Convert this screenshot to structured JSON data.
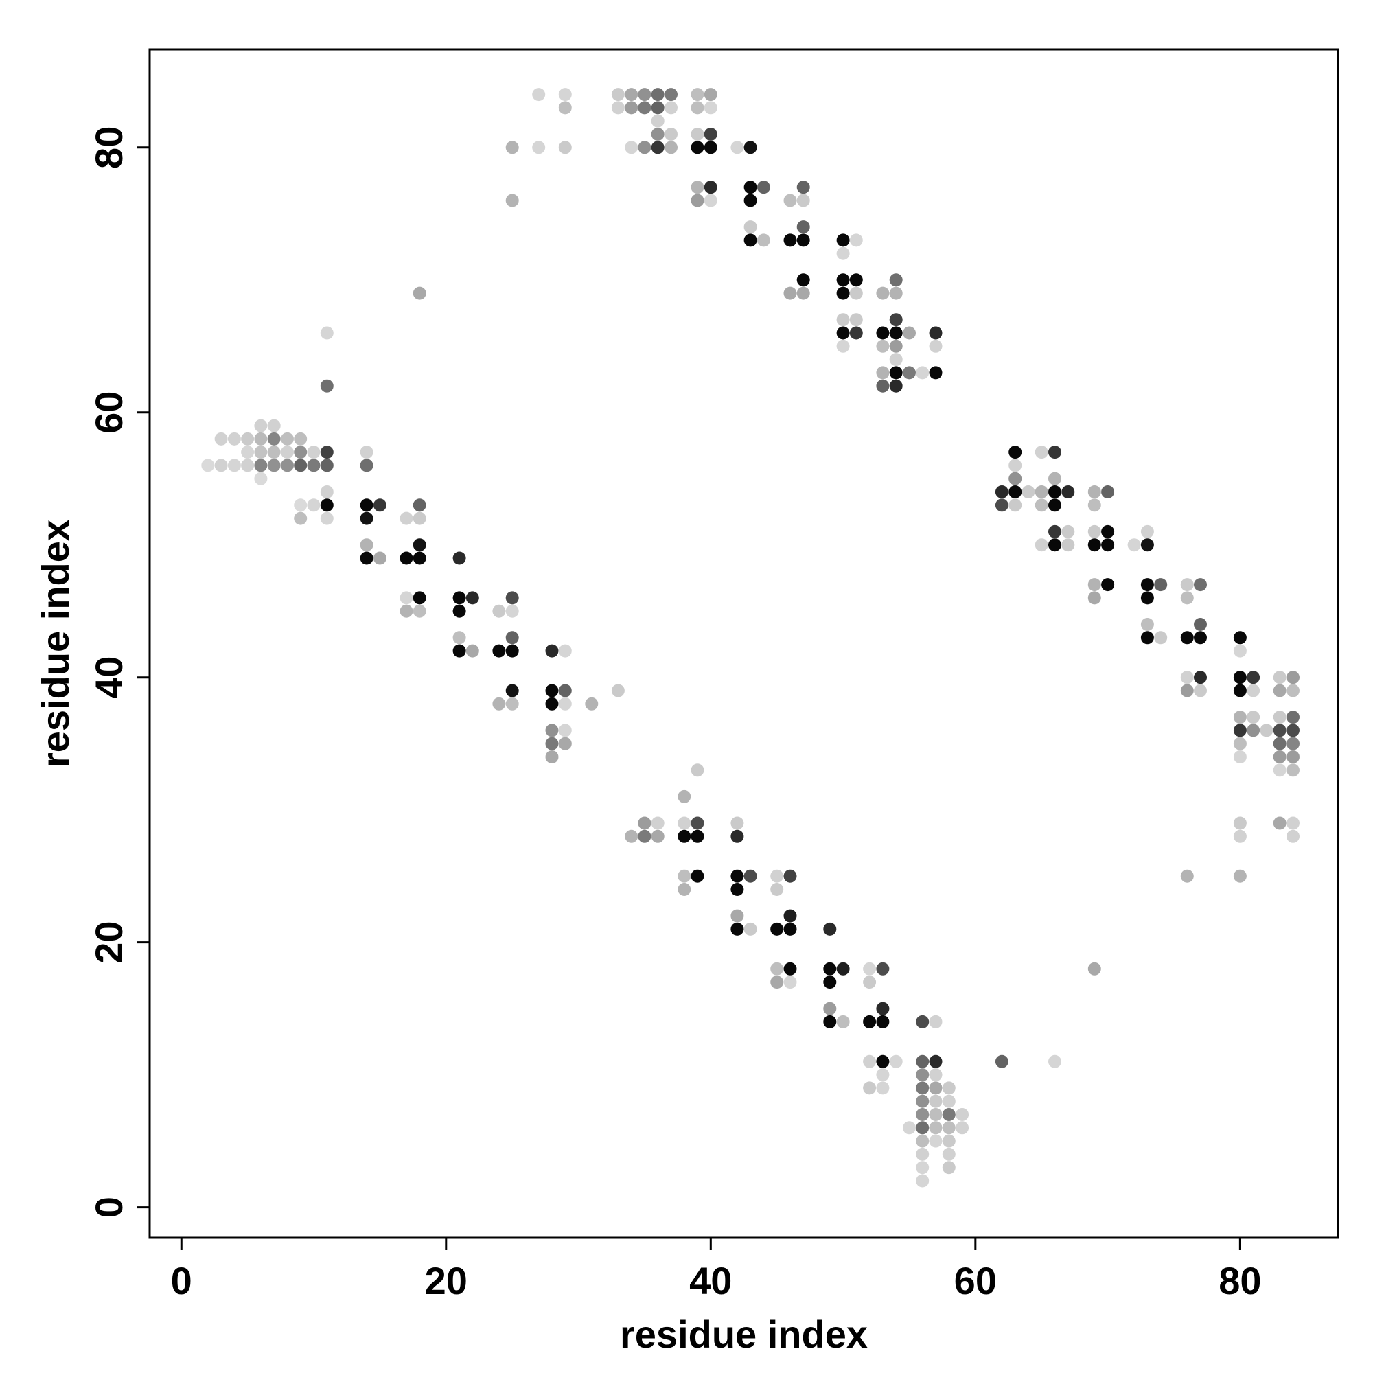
{
  "chart_data": {
    "type": "scatter",
    "title": "",
    "xlabel": "residue index",
    "ylabel": "residue index",
    "xlim": [
      -2.4,
      87.4
    ],
    "ylim": [
      -2.3,
      87.4
    ],
    "x_ticks": [
      0,
      20,
      40,
      60,
      80
    ],
    "y_ticks": [
      0,
      20,
      40,
      60,
      80
    ],
    "grid": false,
    "legend": "none",
    "marker_color": "#000000",
    "note_value": "each point value in [0,1] is shown as gray-level intensity (1 = black)",
    "points": [
      [
        2,
        56,
        0.08
      ],
      [
        3,
        56,
        0.12
      ],
      [
        3,
        58,
        0.12
      ],
      [
        4,
        56,
        0.1
      ],
      [
        4,
        58,
        0.12
      ],
      [
        5,
        56,
        0.12
      ],
      [
        5,
        58,
        0.15
      ],
      [
        5,
        57,
        0.1
      ],
      [
        6,
        59,
        0.12
      ],
      [
        6,
        58,
        0.22
      ],
      [
        6,
        57,
        0.18
      ],
      [
        6,
        56,
        0.45
      ],
      [
        6,
        55,
        0.08
      ],
      [
        7,
        59,
        0.12
      ],
      [
        7,
        58,
        0.45
      ],
      [
        7,
        57,
        0.2
      ],
      [
        7,
        56,
        0.4
      ],
      [
        8,
        58,
        0.2
      ],
      [
        8,
        57,
        0.12
      ],
      [
        8,
        56,
        0.4
      ],
      [
        9,
        58,
        0.2
      ],
      [
        9,
        57,
        0.4
      ],
      [
        9,
        56,
        0.6
      ],
      [
        9,
        53,
        0.08
      ],
      [
        9,
        52,
        0.2
      ],
      [
        10,
        57,
        0.12
      ],
      [
        10,
        56,
        0.5
      ],
      [
        10,
        53,
        0.1
      ],
      [
        11,
        66,
        0.1
      ],
      [
        11,
        62,
        0.55
      ],
      [
        11,
        57,
        0.75
      ],
      [
        11,
        56,
        0.6
      ],
      [
        11,
        54,
        0.12
      ],
      [
        11,
        53,
        1.0
      ],
      [
        11,
        52,
        0.1
      ],
      [
        14,
        57,
        0.12
      ],
      [
        14,
        56,
        0.55
      ],
      [
        14,
        53,
        1.0
      ],
      [
        14,
        52,
        0.95
      ],
      [
        14,
        50,
        0.25
      ],
      [
        14,
        49,
        1.0
      ],
      [
        15,
        53,
        0.8
      ],
      [
        15,
        49,
        0.3
      ],
      [
        17,
        52,
        0.12
      ],
      [
        17,
        49,
        1.0
      ],
      [
        17,
        46,
        0.1
      ],
      [
        17,
        45,
        0.25
      ],
      [
        18,
        69,
        0.3
      ],
      [
        18,
        53,
        0.6
      ],
      [
        18,
        52,
        0.15
      ],
      [
        18,
        50,
        0.95
      ],
      [
        18,
        49,
        1.0
      ],
      [
        18,
        46,
        1.0
      ],
      [
        18,
        45,
        0.2
      ],
      [
        21,
        49,
        0.85
      ],
      [
        21,
        46,
        1.0
      ],
      [
        21,
        45,
        1.0
      ],
      [
        21,
        43,
        0.2
      ],
      [
        21,
        42,
        1.0
      ],
      [
        22,
        46,
        0.85
      ],
      [
        22,
        42,
        0.3
      ],
      [
        24,
        45,
        0.15
      ],
      [
        24,
        42,
        1.0
      ],
      [
        24,
        38,
        0.25
      ],
      [
        25,
        80,
        0.25
      ],
      [
        25,
        76,
        0.25
      ],
      [
        25,
        46,
        0.7
      ],
      [
        25,
        45,
        0.1
      ],
      [
        25,
        43,
        0.6
      ],
      [
        25,
        42,
        1.0
      ],
      [
        25,
        39,
        0.95
      ],
      [
        25,
        38,
        0.2
      ],
      [
        27,
        84,
        0.1
      ],
      [
        27,
        80,
        0.1
      ],
      [
        28,
        42,
        0.85
      ],
      [
        28,
        39,
        1.0
      ],
      [
        28,
        38,
        1.0
      ],
      [
        28,
        36,
        0.4
      ],
      [
        28,
        35,
        0.5
      ],
      [
        28,
        34,
        0.3
      ],
      [
        29,
        84,
        0.1
      ],
      [
        29,
        83,
        0.2
      ],
      [
        29,
        80,
        0.15
      ],
      [
        29,
        42,
        0.1
      ],
      [
        29,
        39,
        0.6
      ],
      [
        29,
        38,
        0.1
      ],
      [
        29,
        36,
        0.1
      ],
      [
        29,
        35,
        0.3
      ],
      [
        31,
        38,
        0.25
      ],
      [
        33,
        39,
        0.15
      ],
      [
        33,
        84,
        0.15
      ],
      [
        33,
        83,
        0.12
      ],
      [
        34,
        84,
        0.3
      ],
      [
        34,
        83,
        0.35
      ],
      [
        34,
        80,
        0.1
      ],
      [
        34,
        28,
        0.25
      ],
      [
        35,
        84,
        0.4
      ],
      [
        35,
        83,
        0.5
      ],
      [
        35,
        80,
        0.4
      ],
      [
        35,
        29,
        0.35
      ],
      [
        35,
        28,
        0.5
      ],
      [
        36,
        84,
        0.55
      ],
      [
        36,
        83,
        0.6
      ],
      [
        36,
        82,
        0.12
      ],
      [
        36,
        81,
        0.4
      ],
      [
        36,
        80,
        0.8
      ],
      [
        36,
        29,
        0.12
      ],
      [
        36,
        28,
        0.3
      ],
      [
        37,
        84,
        0.5
      ],
      [
        37,
        83,
        0.12
      ],
      [
        37,
        81,
        0.15
      ],
      [
        37,
        80,
        0.25
      ],
      [
        38,
        31,
        0.25
      ],
      [
        38,
        29,
        0.12
      ],
      [
        38,
        28,
        1.0
      ],
      [
        38,
        25,
        0.2
      ],
      [
        38,
        24,
        0.25
      ],
      [
        39,
        84,
        0.2
      ],
      [
        39,
        83,
        0.2
      ],
      [
        39,
        81,
        0.15
      ],
      [
        39,
        80,
        1.0
      ],
      [
        39,
        77,
        0.25
      ],
      [
        39,
        76,
        0.35
      ],
      [
        39,
        33,
        0.15
      ],
      [
        39,
        29,
        0.7
      ],
      [
        39,
        28,
        1.0
      ],
      [
        39,
        25,
        1.0
      ],
      [
        40,
        84,
        0.3
      ],
      [
        40,
        83,
        0.1
      ],
      [
        40,
        81,
        0.75
      ],
      [
        40,
        80,
        1.0
      ],
      [
        40,
        77,
        0.85
      ],
      [
        40,
        76,
        0.1
      ],
      [
        42,
        80,
        0.1
      ],
      [
        42,
        29,
        0.15
      ],
      [
        42,
        28,
        0.85
      ],
      [
        42,
        25,
        1.0
      ],
      [
        42,
        24,
        1.0
      ],
      [
        42,
        22,
        0.3
      ],
      [
        42,
        21,
        1.0
      ],
      [
        43,
        80,
        0.95
      ],
      [
        43,
        77,
        1.0
      ],
      [
        43,
        76,
        1.0
      ],
      [
        43,
        74,
        0.15
      ],
      [
        43,
        73,
        1.0
      ],
      [
        43,
        25,
        0.7
      ],
      [
        43,
        21,
        0.15
      ],
      [
        44,
        77,
        0.6
      ],
      [
        44,
        73,
        0.2
      ],
      [
        45,
        25,
        0.12
      ],
      [
        45,
        24,
        0.15
      ],
      [
        45,
        21,
        1.0
      ],
      [
        45,
        18,
        0.2
      ],
      [
        45,
        17,
        0.3
      ],
      [
        46,
        76,
        0.2
      ],
      [
        46,
        73,
        1.0
      ],
      [
        46,
        69,
        0.3
      ],
      [
        46,
        25,
        0.75
      ],
      [
        46,
        22,
        0.9
      ],
      [
        46,
        21,
        1.0
      ],
      [
        46,
        18,
        1.0
      ],
      [
        46,
        17,
        0.1
      ],
      [
        47,
        77,
        0.6
      ],
      [
        47,
        76,
        0.15
      ],
      [
        47,
        74,
        0.6
      ],
      [
        47,
        73,
        1.0
      ],
      [
        47,
        70,
        1.0
      ],
      [
        47,
        69,
        0.3
      ],
      [
        49,
        21,
        0.85
      ],
      [
        49,
        18,
        1.0
      ],
      [
        49,
        17,
        1.0
      ],
      [
        49,
        15,
        0.35
      ],
      [
        49,
        14,
        1.0
      ],
      [
        50,
        73,
        1.0
      ],
      [
        50,
        72,
        0.1
      ],
      [
        50,
        70,
        1.0
      ],
      [
        50,
        69,
        1.0
      ],
      [
        50,
        67,
        0.15
      ],
      [
        50,
        66,
        1.0
      ],
      [
        50,
        65,
        0.1
      ],
      [
        50,
        18,
        0.9
      ],
      [
        50,
        14,
        0.2
      ],
      [
        51,
        73,
        0.1
      ],
      [
        51,
        70,
        1.0
      ],
      [
        51,
        69,
        0.15
      ],
      [
        51,
        67,
        0.15
      ],
      [
        51,
        66,
        0.8
      ],
      [
        52,
        18,
        0.1
      ],
      [
        52,
        17,
        0.15
      ],
      [
        52,
        14,
        1.0
      ],
      [
        52,
        11,
        0.12
      ],
      [
        52,
        9,
        0.15
      ],
      [
        53,
        69,
        0.25
      ],
      [
        53,
        66,
        1.0
      ],
      [
        53,
        65,
        0.2
      ],
      [
        53,
        63,
        0.25
      ],
      [
        53,
        62,
        0.6
      ],
      [
        53,
        18,
        0.7
      ],
      [
        53,
        15,
        0.85
      ],
      [
        53,
        14,
        1.0
      ],
      [
        53,
        11,
        1.0
      ],
      [
        53,
        10,
        0.1
      ],
      [
        53,
        9,
        0.1
      ],
      [
        54,
        70,
        0.55
      ],
      [
        54,
        69,
        0.25
      ],
      [
        54,
        67,
        0.75
      ],
      [
        54,
        66,
        1.0
      ],
      [
        54,
        65,
        0.35
      ],
      [
        54,
        64,
        0.12
      ],
      [
        54,
        63,
        1.0
      ],
      [
        54,
        62,
        0.85
      ],
      [
        54,
        11,
        0.1
      ],
      [
        55,
        66,
        0.3
      ],
      [
        55,
        63,
        0.5
      ],
      [
        56,
        63,
        0.1
      ],
      [
        56,
        14,
        0.7
      ],
      [
        56,
        11,
        0.6
      ],
      [
        56,
        10,
        0.4
      ],
      [
        56,
        9,
        0.5
      ],
      [
        56,
        8,
        0.4
      ],
      [
        56,
        7,
        0.4
      ],
      [
        56,
        6,
        0.55
      ],
      [
        56,
        5,
        0.2
      ],
      [
        56,
        4,
        0.12
      ],
      [
        56,
        3,
        0.1
      ],
      [
        56,
        2,
        0.1
      ],
      [
        55,
        6,
        0.1
      ],
      [
        57,
        66,
        0.85
      ],
      [
        57,
        65,
        0.12
      ],
      [
        57,
        63,
        1.0
      ],
      [
        57,
        14,
        0.12
      ],
      [
        57,
        11,
        0.85
      ],
      [
        57,
        10,
        0.12
      ],
      [
        57,
        9,
        0.3
      ],
      [
        57,
        8,
        0.15
      ],
      [
        57,
        7,
        0.2
      ],
      [
        57,
        6,
        0.2
      ],
      [
        57,
        5,
        0.1
      ],
      [
        58,
        9,
        0.15
      ],
      [
        58,
        8,
        0.12
      ],
      [
        58,
        7,
        0.5
      ],
      [
        58,
        6,
        0.2
      ],
      [
        58,
        5,
        0.15
      ],
      [
        58,
        4,
        0.12
      ],
      [
        58,
        3,
        0.15
      ],
      [
        59,
        7,
        0.12
      ],
      [
        59,
        6,
        0.12
      ],
      [
        62,
        54,
        0.85
      ],
      [
        62,
        53,
        0.7
      ],
      [
        62,
        11,
        0.6
      ],
      [
        63,
        57,
        1.0
      ],
      [
        63,
        56,
        0.12
      ],
      [
        63,
        55,
        0.4
      ],
      [
        63,
        54,
        1.0
      ],
      [
        63,
        53,
        0.15
      ],
      [
        64,
        54,
        0.15
      ],
      [
        65,
        57,
        0.12
      ],
      [
        65,
        54,
        0.25
      ],
      [
        65,
        53,
        0.2
      ],
      [
        65,
        50,
        0.12
      ],
      [
        66,
        57,
        0.8
      ],
      [
        66,
        55,
        0.25
      ],
      [
        66,
        54,
        1.0
      ],
      [
        66,
        53,
        1.0
      ],
      [
        66,
        51,
        0.8
      ],
      [
        66,
        50,
        1.0
      ],
      [
        66,
        11,
        0.1
      ],
      [
        67,
        54,
        0.85
      ],
      [
        67,
        51,
        0.15
      ],
      [
        67,
        50,
        0.15
      ],
      [
        69,
        54,
        0.25
      ],
      [
        69,
        53,
        0.2
      ],
      [
        69,
        51,
        0.15
      ],
      [
        69,
        50,
        1.0
      ],
      [
        69,
        47,
        0.25
      ],
      [
        69,
        46,
        0.3
      ],
      [
        69,
        18,
        0.3
      ],
      [
        70,
        54,
        0.6
      ],
      [
        70,
        51,
        1.0
      ],
      [
        70,
        50,
        1.0
      ],
      [
        70,
        47,
        1.0
      ],
      [
        72,
        50,
        0.1
      ],
      [
        73,
        51,
        0.12
      ],
      [
        73,
        50,
        0.95
      ],
      [
        73,
        47,
        1.0
      ],
      [
        73,
        46,
        1.0
      ],
      [
        73,
        44,
        0.2
      ],
      [
        73,
        43,
        1.0
      ],
      [
        74,
        47,
        0.6
      ],
      [
        74,
        43,
        0.15
      ],
      [
        76,
        47,
        0.15
      ],
      [
        76,
        46,
        0.2
      ],
      [
        76,
        43,
        1.0
      ],
      [
        76,
        40,
        0.12
      ],
      [
        76,
        39,
        0.35
      ],
      [
        76,
        25,
        0.25
      ],
      [
        77,
        47,
        0.55
      ],
      [
        77,
        44,
        0.6
      ],
      [
        77,
        43,
        1.0
      ],
      [
        77,
        40,
        0.85
      ],
      [
        77,
        39,
        0.15
      ],
      [
        80,
        43,
        1.0
      ],
      [
        80,
        42,
        0.1
      ],
      [
        80,
        40,
        1.0
      ],
      [
        80,
        39,
        1.0
      ],
      [
        80,
        37,
        0.25
      ],
      [
        80,
        36,
        0.8
      ],
      [
        80,
        35,
        0.2
      ],
      [
        80,
        34,
        0.1
      ],
      [
        80,
        29,
        0.15
      ],
      [
        80,
        28,
        0.12
      ],
      [
        80,
        25,
        0.25
      ],
      [
        81,
        40,
        0.8
      ],
      [
        81,
        39,
        0.12
      ],
      [
        81,
        37,
        0.15
      ],
      [
        81,
        36,
        0.4
      ],
      [
        82,
        36,
        0.15
      ],
      [
        83,
        40,
        0.15
      ],
      [
        83,
        39,
        0.3
      ],
      [
        83,
        37,
        0.15
      ],
      [
        83,
        36,
        0.7
      ],
      [
        83,
        35,
        0.55
      ],
      [
        83,
        34,
        0.35
      ],
      [
        83,
        33,
        0.1
      ],
      [
        83,
        29,
        0.3
      ],
      [
        84,
        40,
        0.35
      ],
      [
        84,
        39,
        0.2
      ],
      [
        84,
        37,
        0.55
      ],
      [
        84,
        36,
        0.7
      ],
      [
        84,
        35,
        0.45
      ],
      [
        84,
        34,
        0.35
      ],
      [
        84,
        33,
        0.2
      ],
      [
        84,
        29,
        0.12
      ],
      [
        84,
        28,
        0.12
      ]
    ]
  }
}
